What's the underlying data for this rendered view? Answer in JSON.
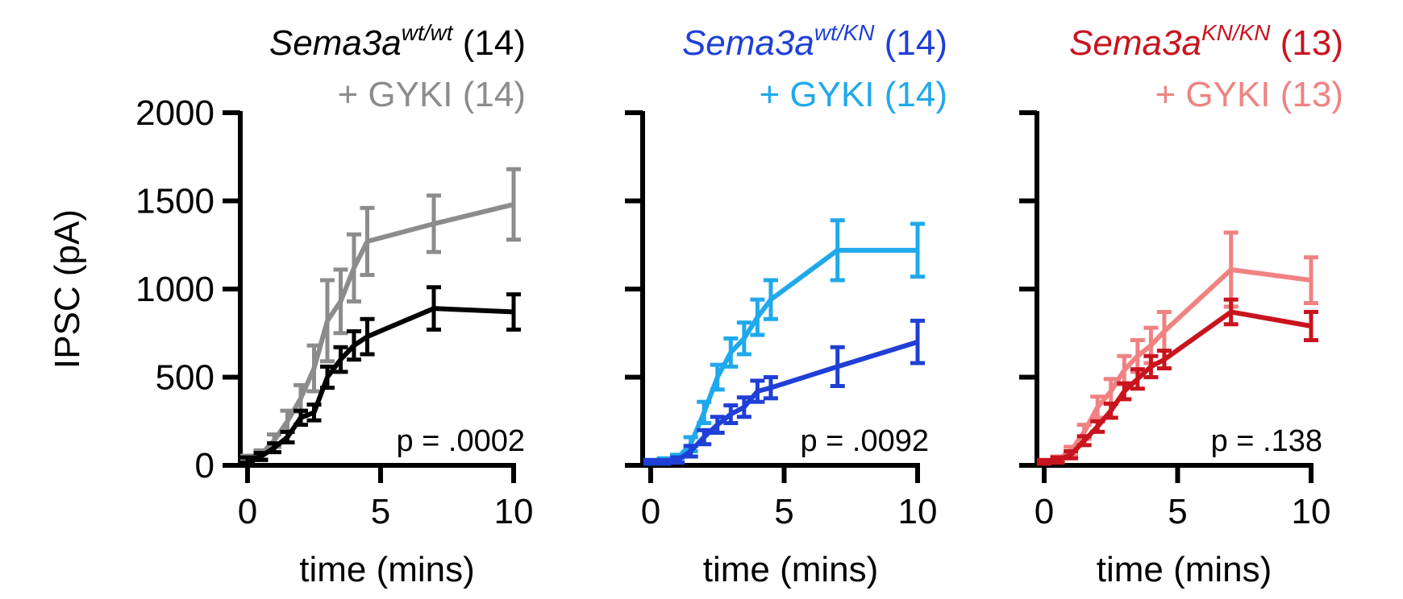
{
  "chart_data": [
    {
      "type": "line",
      "ylabel": "IPSC (pA)",
      "xlabel": "time (mins)",
      "xlim": [
        0,
        10
      ],
      "ylim": [
        0,
        2000
      ],
      "xticks": [
        "0",
        "5",
        "10"
      ],
      "yticks": [
        "0",
        "500",
        "1000",
        "1500",
        "2000"
      ],
      "p_value": "p = .0002",
      "legend": [
        {
          "pre": "",
          "name": "Sema3a",
          "sup": "wt/wt",
          "post": " (14)",
          "color": "#000000",
          "italic_name": true
        },
        {
          "pre": "",
          "name": "",
          "sup": "",
          "post": "+ GYKI (14)",
          "color": "#8c8c8c",
          "italic_name": false
        }
      ],
      "series": [
        {
          "color": "#000000",
          "x": [
            0,
            0.5,
            1,
            1.5,
            2,
            2.5,
            3,
            3.5,
            4,
            4.5,
            7,
            10
          ],
          "y": [
            30,
            50,
            100,
            160,
            270,
            300,
            500,
            600,
            680,
            730,
            890,
            870
          ],
          "err": [
            15,
            20,
            25,
            30,
            40,
            45,
            60,
            70,
            80,
            100,
            120,
            100
          ]
        },
        {
          "color": "#8c8c8c",
          "x": [
            0,
            0.5,
            1,
            1.5,
            2,
            2.5,
            3,
            3.5,
            4,
            4.5,
            7,
            10
          ],
          "y": [
            40,
            60,
            140,
            250,
            380,
            550,
            820,
            930,
            1120,
            1270,
            1370,
            1480
          ],
          "err": [
            15,
            25,
            35,
            60,
            75,
            130,
            230,
            180,
            190,
            190,
            160,
            200
          ]
        }
      ]
    },
    {
      "type": "line",
      "xlabel": "time (mins)",
      "xlim": [
        0,
        10
      ],
      "ylim": [
        0,
        2000
      ],
      "xticks": [
        "0",
        "5",
        "10"
      ],
      "p_value": "p = .0092",
      "legend": [
        {
          "pre": "",
          "name": "Sema3a",
          "sup": "wt/KN",
          "post": " (14)",
          "color": "#1f3fd6",
          "italic_name": true
        },
        {
          "pre": "",
          "name": "",
          "sup": "",
          "post": "+ GYKI (14)",
          "color": "#1fa9ec",
          "italic_name": false
        }
      ],
      "series": [
        {
          "color": "#1f3fd6",
          "x": [
            0,
            0.5,
            1,
            1.5,
            2,
            2.5,
            3,
            3.5,
            4,
            4.5,
            7,
            10
          ],
          "y": [
            20,
            20,
            30,
            80,
            160,
            230,
            290,
            330,
            420,
            440,
            560,
            700
          ],
          "err": [
            10,
            10,
            15,
            30,
            40,
            45,
            50,
            55,
            60,
            60,
            110,
            120
          ]
        },
        {
          "color": "#1fa9ec",
          "x": [
            0,
            0.5,
            1,
            1.5,
            2,
            2.5,
            3,
            3.5,
            4,
            4.5,
            7,
            10
          ],
          "y": [
            20,
            25,
            40,
            120,
            300,
            500,
            640,
            720,
            840,
            940,
            1220,
            1220
          ],
          "err": [
            10,
            15,
            20,
            40,
            60,
            70,
            80,
            90,
            100,
            110,
            170,
            150
          ]
        }
      ]
    },
    {
      "type": "line",
      "xlabel": "time (mins)",
      "xlim": [
        0,
        10
      ],
      "ylim": [
        0,
        2000
      ],
      "xticks": [
        "0",
        "5",
        "10"
      ],
      "p_value": "p  = .138",
      "legend": [
        {
          "pre": "",
          "name": "Sema3a",
          "sup": "KN/KN",
          "post": " (13)",
          "color": "#c8141e",
          "italic_name": true
        },
        {
          "pre": "",
          "name": "",
          "sup": "",
          "post": "+ GYKI (13)",
          "color": "#f08282",
          "italic_name": false
        }
      ],
      "series": [
        {
          "color": "#c8141e",
          "x": [
            0,
            0.5,
            1,
            1.5,
            2,
            2.5,
            3,
            3.5,
            4,
            4.5,
            7,
            10
          ],
          "y": [
            20,
            30,
            60,
            140,
            220,
            310,
            420,
            490,
            560,
            600,
            870,
            790
          ],
          "err": [
            10,
            15,
            20,
            25,
            30,
            40,
            45,
            55,
            60,
            50,
            70,
            80
          ]
        },
        {
          "color": "#f08282",
          "x": [
            0,
            0.5,
            1,
            1.5,
            2,
            2.5,
            3,
            3.5,
            4,
            4.5,
            7,
            10
          ],
          "y": [
            20,
            35,
            80,
            190,
            330,
            420,
            540,
            620,
            680,
            760,
            1110,
            1050
          ],
          "err": [
            10,
            15,
            25,
            40,
            60,
            70,
            80,
            90,
            100,
            110,
            210,
            130
          ]
        }
      ]
    }
  ]
}
